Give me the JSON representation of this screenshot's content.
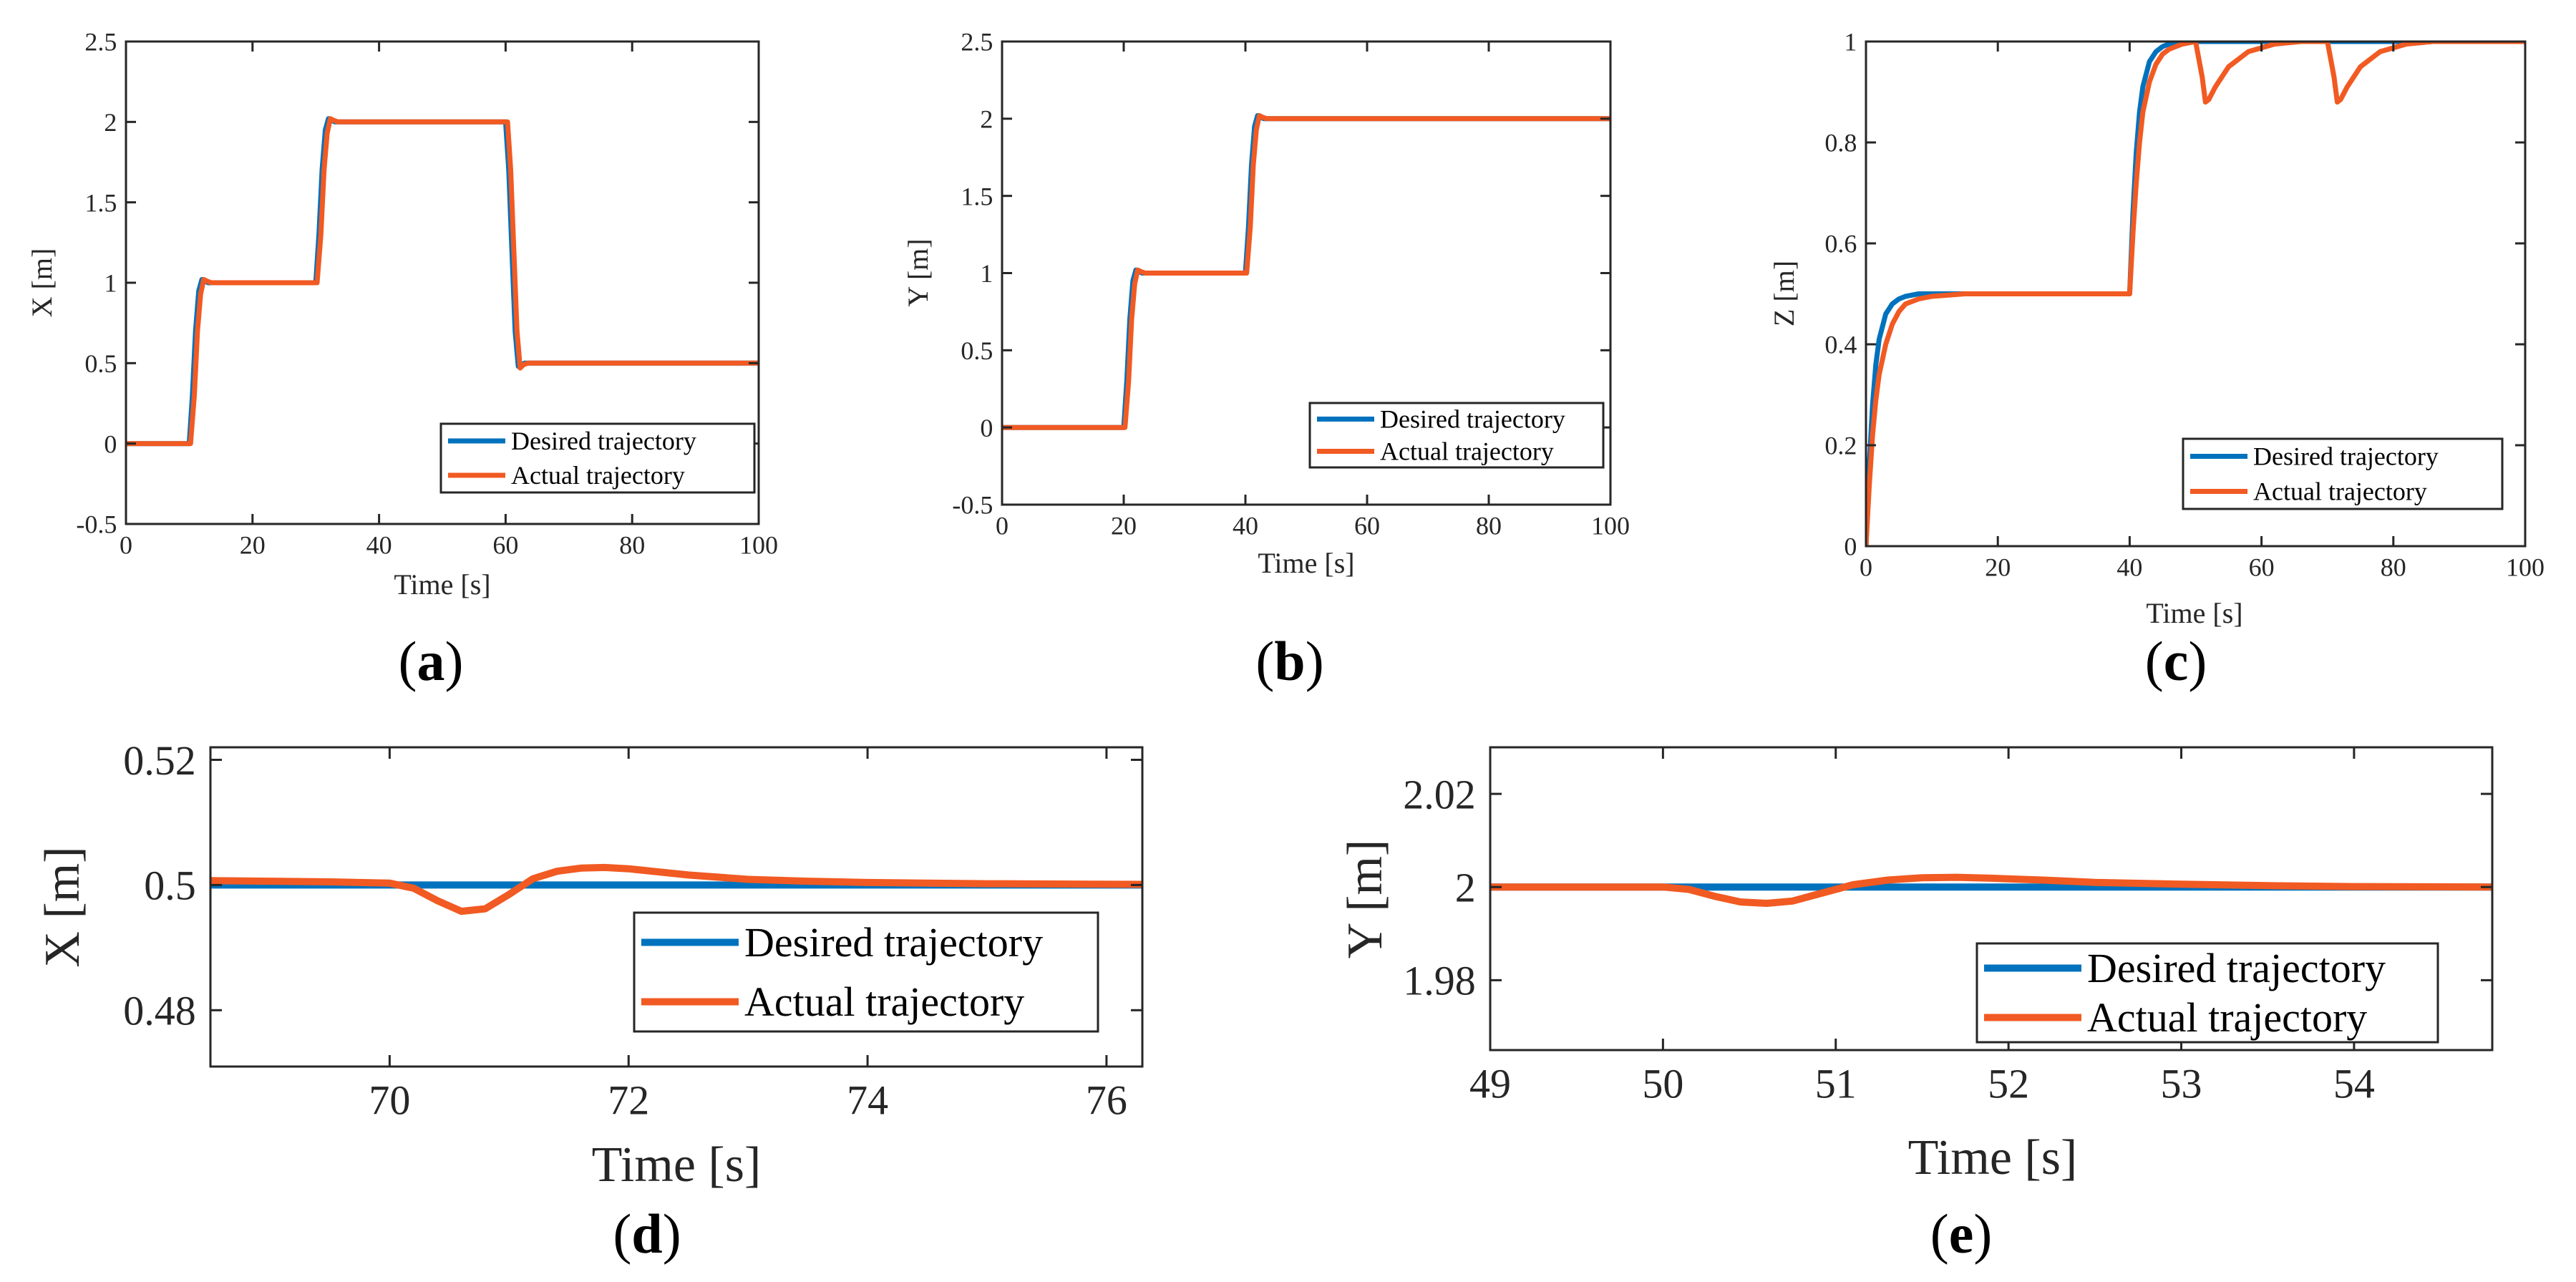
{
  "colors": {
    "desired": "#0072BD",
    "actual": "#F15A22"
  },
  "chart_data": [
    {
      "id": "a",
      "type": "line",
      "caption": "a",
      "xlabel": "Time [s]",
      "ylabel": "X [m]",
      "xlim": [
        0,
        100
      ],
      "ylim": [
        -0.5,
        2.5
      ],
      "xticks": [
        0,
        20,
        40,
        60,
        80,
        100
      ],
      "xtick_labels": [
        "0",
        "20",
        "40",
        "60",
        "80",
        "100"
      ],
      "yticks": [
        -0.5,
        0,
        0.5,
        1,
        1.5,
        2,
        2.5
      ],
      "ytick_labels": [
        "-0.5",
        "0",
        "0.5",
        "1",
        "1.5",
        "2",
        "2.5"
      ],
      "legend": [
        "Desired trajectory",
        "Actual trajectory"
      ],
      "legend_position": "bottom-right",
      "series": [
        {
          "name": "Desired trajectory",
          "x": [
            0,
            10,
            10.5,
            11,
            11.5,
            12,
            12.5,
            13,
            14,
            30,
            30.5,
            31,
            31.5,
            32,
            32.5,
            33,
            34,
            60,
            60.5,
            61,
            61.5,
            62,
            62.5,
            63,
            64,
            100
          ],
          "y": [
            0,
            0,
            0.3,
            0.7,
            0.95,
            1.02,
            1.01,
            1,
            1,
            1,
            1.3,
            1.7,
            1.95,
            2.02,
            2.01,
            2,
            2,
            2,
            1.7,
            1.2,
            0.7,
            0.48,
            0.49,
            0.5,
            0.5,
            0.5
          ]
        },
        {
          "name": "Actual trajectory",
          "x": [
            0,
            10.2,
            10.8,
            11.3,
            11.8,
            12.3,
            12.8,
            13.5,
            15,
            30.2,
            30.8,
            31.3,
            31.8,
            32.3,
            32.8,
            33.5,
            35,
            60.3,
            60.8,
            61.3,
            61.8,
            62.3,
            62.8,
            63.5,
            65,
            100
          ],
          "y": [
            0,
            0,
            0.3,
            0.7,
            0.93,
            1.02,
            1.01,
            1,
            1,
            1,
            1.3,
            1.7,
            1.93,
            2.02,
            2.01,
            2,
            2,
            2,
            1.7,
            1.2,
            0.7,
            0.47,
            0.49,
            0.5,
            0.5,
            0.5
          ]
        }
      ]
    },
    {
      "id": "b",
      "type": "line",
      "caption": "b",
      "xlabel": "Time [s]",
      "ylabel": "Y [m]",
      "xlim": [
        0,
        100
      ],
      "ylim": [
        -0.5,
        2.5
      ],
      "xticks": [
        0,
        20,
        40,
        60,
        80,
        100
      ],
      "xtick_labels": [
        "0",
        "20",
        "40",
        "60",
        "80",
        "100"
      ],
      "yticks": [
        -0.5,
        0,
        0.5,
        1,
        1.5,
        2,
        2.5
      ],
      "ytick_labels": [
        "-0.5",
        "0",
        "0.5",
        "1",
        "1.5",
        "2",
        "2.5"
      ],
      "legend": [
        "Desired trajectory",
        "Actual trajectory"
      ],
      "legend_position": "right",
      "series": [
        {
          "name": "Desired trajectory",
          "x": [
            0,
            20,
            20.5,
            21,
            21.5,
            22,
            22.5,
            23,
            24,
            40,
            40.5,
            41,
            41.5,
            42,
            42.5,
            43,
            44,
            100
          ],
          "y": [
            0,
            0,
            0.3,
            0.7,
            0.95,
            1.02,
            1.01,
            1,
            1,
            1,
            1.3,
            1.7,
            1.95,
            2.02,
            2.01,
            2,
            2,
            2
          ]
        },
        {
          "name": "Actual trajectory",
          "x": [
            0,
            20.2,
            20.8,
            21.3,
            21.8,
            22.3,
            22.8,
            23.5,
            25,
            40.2,
            40.8,
            41.3,
            41.8,
            42.3,
            42.8,
            43.5,
            45,
            100
          ],
          "y": [
            0,
            0,
            0.3,
            0.7,
            0.93,
            1.02,
            1.01,
            1,
            1,
            1,
            1.3,
            1.7,
            1.93,
            2.02,
            2.01,
            2,
            2,
            2
          ]
        }
      ]
    },
    {
      "id": "c",
      "type": "line",
      "caption": "c",
      "xlabel": "Time [s]",
      "ylabel": "Z [m]",
      "xlim": [
        0,
        100
      ],
      "ylim": [
        0,
        1
      ],
      "xticks": [
        0,
        20,
        40,
        60,
        80,
        100
      ],
      "xtick_labels": [
        "0",
        "20",
        "40",
        "60",
        "80",
        "100"
      ],
      "yticks": [
        0,
        0.2,
        0.4,
        0.6,
        0.8,
        1
      ],
      "ytick_labels": [
        "0",
        "0.2",
        "0.4",
        "0.6",
        "0.8",
        "1"
      ],
      "legend": [
        "Desired trajectory",
        "Actual trajectory"
      ],
      "legend_position": "bottom-right",
      "series": [
        {
          "name": "Desired trajectory",
          "x": [
            0,
            0.5,
            1,
            1.5,
            2,
            3,
            4,
            5,
            6,
            8,
            40,
            40.5,
            41,
            41.5,
            42,
            43,
            44,
            45,
            46,
            48,
            100
          ],
          "y": [
            0,
            0.16,
            0.28,
            0.36,
            0.41,
            0.46,
            0.48,
            0.49,
            0.495,
            0.5,
            0.5,
            0.66,
            0.78,
            0.86,
            0.91,
            0.96,
            0.98,
            0.99,
            0.995,
            1,
            1
          ]
        },
        {
          "name": "Actual trajectory",
          "x": [
            0,
            0.5,
            1,
            1.5,
            2,
            3,
            4,
            5,
            6,
            8,
            10,
            15,
            40,
            40.5,
            41,
            41.5,
            42,
            43,
            44,
            45,
            46,
            48,
            50,
            51,
            51.5,
            52,
            53,
            55,
            58,
            62,
            66,
            70,
            71,
            71.5,
            72,
            73,
            75,
            78,
            82,
            86,
            90,
            100
          ],
          "y": [
            0,
            0.12,
            0.22,
            0.29,
            0.34,
            0.4,
            0.44,
            0.465,
            0.48,
            0.49,
            0.495,
            0.5,
            0.5,
            0.62,
            0.72,
            0.8,
            0.86,
            0.92,
            0.955,
            0.975,
            0.985,
            0.995,
            1,
            0.93,
            0.88,
            0.885,
            0.91,
            0.95,
            0.98,
            0.995,
            1,
            1,
            0.93,
            0.88,
            0.885,
            0.91,
            0.95,
            0.98,
            0.995,
            1,
            1,
            1
          ]
        }
      ]
    },
    {
      "id": "d",
      "type": "line",
      "caption": "d",
      "xlabel": "Time [s]",
      "ylabel": "X [m]",
      "xlim": [
        68.5,
        76.3
      ],
      "ylim": [
        0.471,
        0.522
      ],
      "xticks": [
        70,
        72,
        74,
        76
      ],
      "xtick_labels": [
        "70",
        "72",
        "74",
        "76"
      ],
      "yticks": [
        0.48,
        0.5,
        0.52
      ],
      "ytick_labels": [
        "0.48",
        "0.5",
        "0.52"
      ],
      "legend": [
        "Desired trajectory",
        "Actual trajectory"
      ],
      "legend_position": "bottom-right",
      "series": [
        {
          "name": "Desired trajectory",
          "x": [
            68.5,
            76.3
          ],
          "y": [
            0.5,
            0.5
          ]
        },
        {
          "name": "Actual trajectory",
          "x": [
            68.5,
            69,
            69.5,
            70,
            70.2,
            70.4,
            70.6,
            70.8,
            71,
            71.2,
            71.4,
            71.6,
            71.8,
            72,
            72.2,
            72.5,
            73,
            73.5,
            74,
            75,
            76.3
          ],
          "y": [
            0.5007,
            0.5006,
            0.5005,
            0.5003,
            0.4995,
            0.4975,
            0.4958,
            0.4962,
            0.4985,
            0.501,
            0.5022,
            0.5027,
            0.5028,
            0.5026,
            0.5022,
            0.5016,
            0.5009,
            0.5006,
            0.5004,
            0.5002,
            0.5001
          ]
        }
      ]
    },
    {
      "id": "e",
      "type": "line",
      "caption": "e",
      "xlabel": "Time [s]",
      "ylabel": "Y [m]",
      "xlim": [
        49,
        54.8
      ],
      "ylim": [
        1.965,
        2.03
      ],
      "xticks": [
        49,
        50,
        51,
        52,
        53,
        54
      ],
      "xtick_labels": [
        "49",
        "50",
        "51",
        "52",
        "53",
        "54"
      ],
      "yticks": [
        1.98,
        2,
        2.02
      ],
      "ytick_labels": [
        "1.98",
        "2",
        "2.02"
      ],
      "legend": [
        "Desired trajectory",
        "Actual trajectory"
      ],
      "legend_position": "bottom-right",
      "series": [
        {
          "name": "Desired trajectory",
          "x": [
            49,
            54.8
          ],
          "y": [
            2,
            2
          ]
        },
        {
          "name": "Actual trajectory",
          "x": [
            49,
            49.5,
            50,
            50.15,
            50.3,
            50.45,
            50.6,
            50.75,
            50.9,
            51.1,
            51.3,
            51.5,
            51.7,
            51.9,
            52.2,
            52.5,
            53,
            53.5,
            54,
            54.8
          ],
          "y": [
            2,
            2,
            2,
            1.9995,
            1.998,
            1.9968,
            1.9965,
            1.997,
            1.9985,
            2.0005,
            2.0015,
            2.002,
            2.0021,
            2.0019,
            2.0015,
            2.001,
            2.0006,
            2.0003,
            2.0001,
            2
          ]
        }
      ]
    }
  ]
}
